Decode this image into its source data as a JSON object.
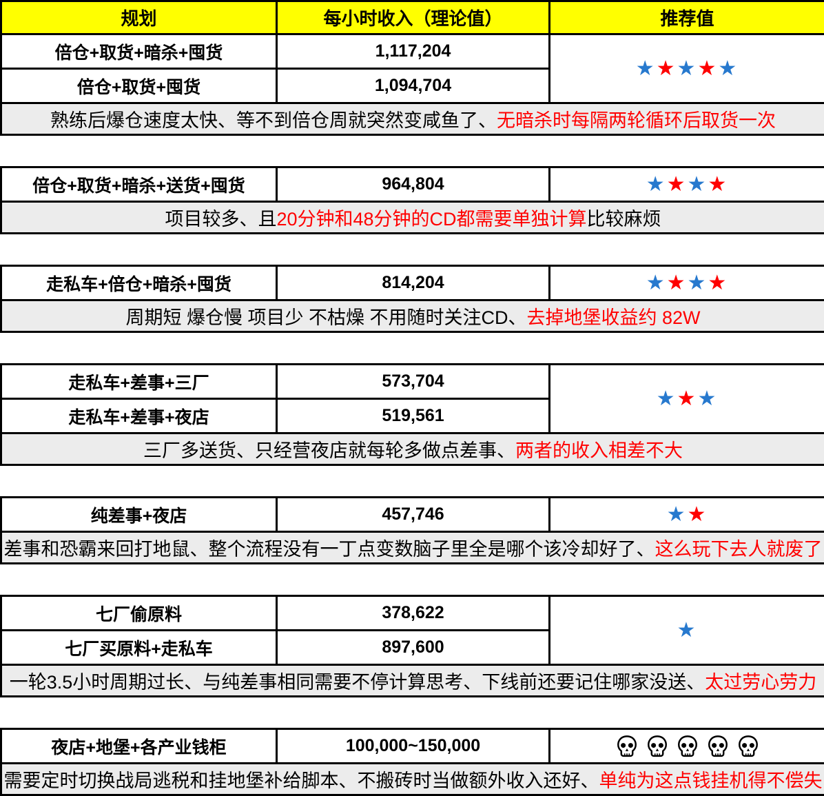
{
  "colors": {
    "header_bg": "#ffff00",
    "note_bg": "#ececec",
    "star_blue": "#2779ce",
    "star_red": "#fe0000",
    "note_highlight_red": "#ff0000",
    "border": "#000000"
  },
  "icons": {
    "star": "★",
    "skull": "skull-icon"
  },
  "table": {
    "header": {
      "plan": "规划",
      "income": "每小时收入（理论值）",
      "rating": "推荐值"
    },
    "sections": [
      {
        "rows": [
          {
            "plan": "倍仓+取货+暗杀+囤货",
            "income": "1,117,204"
          },
          {
            "plan": "倍仓+取货+囤货",
            "income": "1,094,704"
          }
        ],
        "rating": {
          "type": "stars",
          "pattern": [
            "blue",
            "red",
            "blue",
            "red",
            "blue"
          ]
        },
        "note": [
          {
            "text": "熟练后爆仓速度太快、等不到倍仓周就突然变咸鱼了、",
            "color": "black"
          },
          {
            "text": "无暗杀时每隔两轮循环后取货一次",
            "color": "red"
          }
        ]
      },
      {
        "rows": [
          {
            "plan": "倍仓+取货+暗杀+送货+囤货",
            "income": "964,804"
          }
        ],
        "rating": {
          "type": "stars",
          "pattern": [
            "blue",
            "red",
            "blue",
            "red"
          ]
        },
        "note": [
          {
            "text": "项目较多、且",
            "color": "black"
          },
          {
            "text": "20分钟和48分钟的CD都需要单独计算",
            "color": "red"
          },
          {
            "text": "比较麻烦",
            "color": "black"
          }
        ]
      },
      {
        "rows": [
          {
            "plan": "走私车+倍仓+暗杀+囤货",
            "income": "814,204"
          }
        ],
        "rating": {
          "type": "stars",
          "pattern": [
            "blue",
            "red",
            "blue",
            "red"
          ]
        },
        "note": [
          {
            "text": "周期短 爆仓慢 项目少 不枯燥 不用随时关注CD、",
            "color": "black"
          },
          {
            "text": "去掉地堡收益约 82W",
            "color": "red"
          }
        ]
      },
      {
        "rows": [
          {
            "plan": "走私车+差事+三厂",
            "income": "573,704"
          },
          {
            "plan": "走私车+差事+夜店",
            "income": "519,561"
          }
        ],
        "rating": {
          "type": "stars",
          "pattern": [
            "blue",
            "red",
            "blue"
          ]
        },
        "note": [
          {
            "text": "三厂多送货、只经营夜店就每轮多做点差事、",
            "color": "black"
          },
          {
            "text": "两者的收入相差不大",
            "color": "red"
          }
        ]
      },
      {
        "rows": [
          {
            "plan": "纯差事+夜店",
            "income": "457,746"
          }
        ],
        "rating": {
          "type": "stars",
          "pattern": [
            "blue",
            "red"
          ]
        },
        "note": [
          {
            "text": "差事和恐霸来回打地鼠、整个流程没有一丁点变数脑子里全是哪个该冷却好了、",
            "color": "black"
          },
          {
            "text": "这么玩下去人就废了",
            "color": "red"
          }
        ]
      },
      {
        "rows": [
          {
            "plan": "七厂偷原料",
            "income": "378,622"
          },
          {
            "plan": "七厂买原料+走私车",
            "income": "897,600"
          }
        ],
        "rating": {
          "type": "stars",
          "pattern": [
            "blue"
          ]
        },
        "note": [
          {
            "text": "一轮3.5小时周期过长、与纯差事相同需要不停计算思考、下线前还要记住哪家没送、",
            "color": "black"
          },
          {
            "text": "太过劳心劳力",
            "color": "red"
          }
        ]
      },
      {
        "rows": [
          {
            "plan": "夜店+地堡+各产业钱柜",
            "income": "100,000~150,000"
          }
        ],
        "rating": {
          "type": "skulls",
          "count": 5
        },
        "note": [
          {
            "text": "需要定时切换战局逃税和挂地堡补给脚本、不搬砖时当做额外收入还好、",
            "color": "black"
          },
          {
            "text": "单纯为这点钱挂机得不偿失",
            "color": "red"
          }
        ]
      }
    ]
  }
}
